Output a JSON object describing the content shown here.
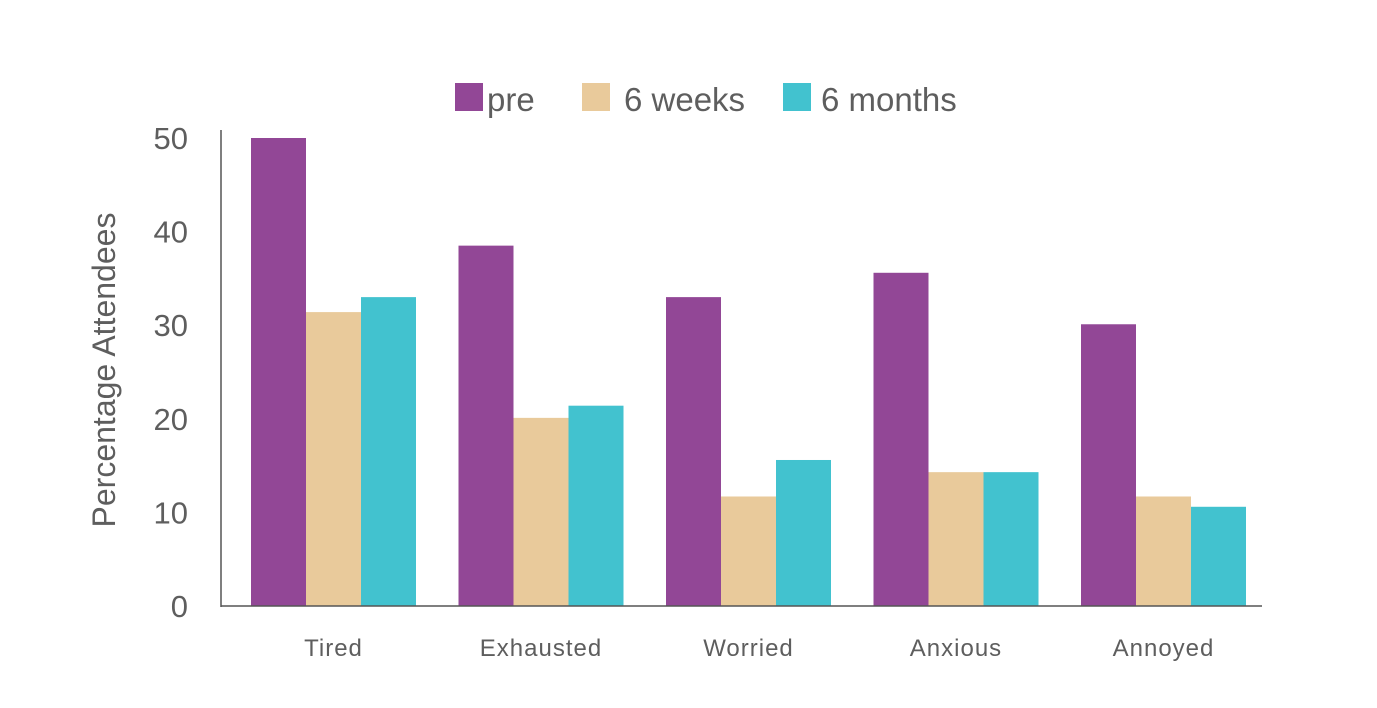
{
  "chart_data": {
    "type": "bar",
    "categories": [
      "Tired",
      "Exhausted",
      "Worried",
      "Anxious",
      "Annoyed"
    ],
    "series": [
      {
        "name": "pre",
        "color": "#924796",
        "values": [
          50,
          38.5,
          33,
          35.6,
          30.1
        ]
      },
      {
        "name": "6 weeks",
        "color": "#e9ca9b",
        "values": [
          31.4,
          20.1,
          11.7,
          14.3,
          11.7
        ]
      },
      {
        "name": "6 months",
        "color": "#42c2cf",
        "values": [
          33,
          21.4,
          15.6,
          14.3,
          10.6
        ]
      }
    ],
    "xlabel": "",
    "ylabel": "Percentage Attendees",
    "ylim": [
      0,
      50
    ],
    "yticks": [
      "0",
      "10",
      "20",
      "30",
      "40",
      "50"
    ],
    "grid": false,
    "legend_position": "top-center"
  }
}
